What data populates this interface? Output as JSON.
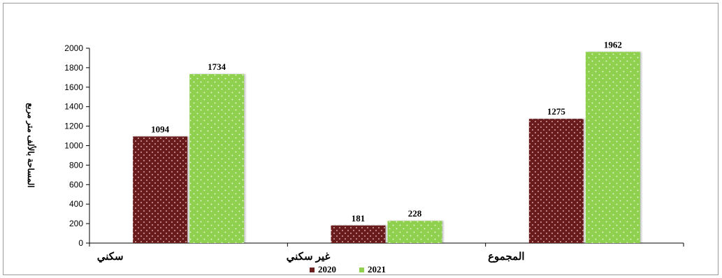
{
  "chart_data": {
    "type": "bar",
    "categories": [
      "سكني",
      "غير سكني",
      "المجموع"
    ],
    "series": [
      {
        "name": "2020",
        "values": [
          1094,
          181,
          1275
        ],
        "color": "#6b1f1f"
      },
      {
        "name": "2021",
        "values": [
          1734,
          228,
          1962
        ],
        "color": "#8fd14f"
      }
    ],
    "ylabel": "المساحة بالألف متر مربع",
    "ylim": [
      0,
      2000
    ],
    "yticks": [
      0,
      200,
      400,
      600,
      800,
      1000,
      1200,
      1400,
      1600,
      1800,
      2000
    ],
    "grid": false,
    "legend_position": "bottom"
  }
}
